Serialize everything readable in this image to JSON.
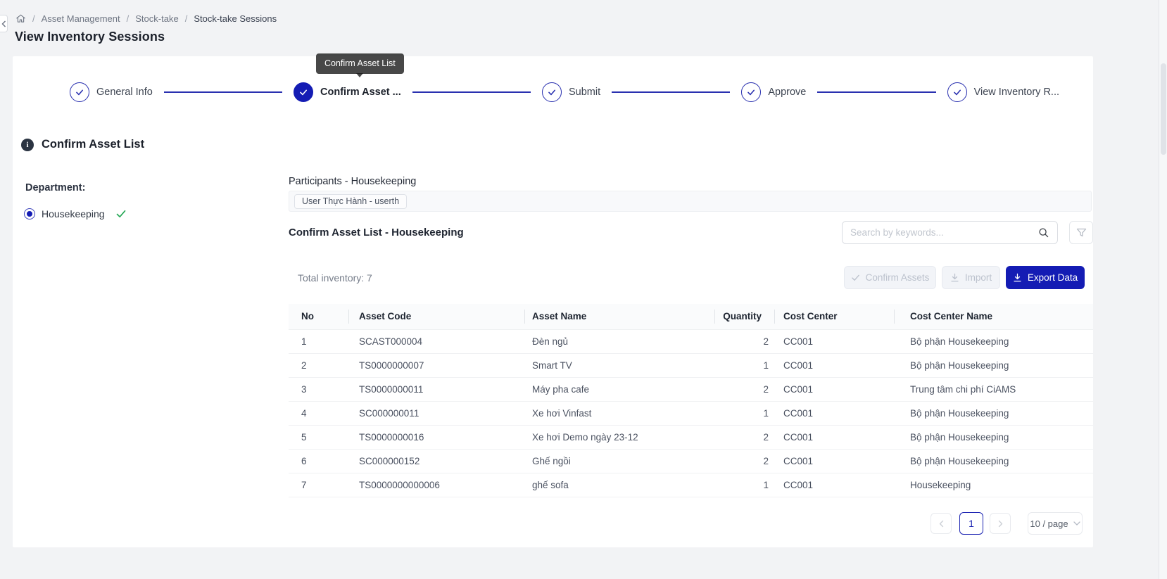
{
  "page": {
    "title": "View Inventory Sessions"
  },
  "breadcrumb": {
    "separator": "/",
    "items": [
      "Asset Management",
      "Stock-take",
      "Stock-take Sessions"
    ]
  },
  "tooltip": {
    "text": "Confirm Asset List"
  },
  "stepper": {
    "steps": [
      {
        "label": "General Info",
        "state": "finished"
      },
      {
        "label": "Confirm Asset ...",
        "state": "current"
      },
      {
        "label": "Submit",
        "state": "finished"
      },
      {
        "label": "Approve",
        "state": "finished"
      },
      {
        "label": "View Inventory R...",
        "state": "finished"
      }
    ]
  },
  "section": {
    "title": "Confirm Asset List"
  },
  "department": {
    "label": "Department:",
    "option": {
      "label": "Housekeeping",
      "selected": true,
      "confirmed": true
    }
  },
  "participants": {
    "title": "Participants - Housekeeping",
    "tag": "User Thực Hành - userth"
  },
  "asset_list": {
    "title": "Confirm Asset List - Housekeeping",
    "search_placeholder": "Search by keywords...",
    "total_label": "Total inventory: 7",
    "buttons": {
      "confirm": "Confirm Assets",
      "import": "Import",
      "export": "Export Data"
    },
    "table": {
      "columns": [
        "No",
        "Asset Code",
        "Asset Name",
        "Quantity",
        "Cost Center",
        "Cost Center Name"
      ],
      "rows": [
        [
          "1",
          "SCAST000004",
          "Đèn ngủ",
          "2",
          "CC001",
          "Bộ phận Housekeeping"
        ],
        [
          "2",
          "TS0000000007",
          "Smart TV",
          "1",
          "CC001",
          "Bộ phận Housekeeping"
        ],
        [
          "3",
          "TS0000000011",
          "Máy pha cafe",
          "2",
          "CC001",
          "Trung tâm chi phí CiAMS"
        ],
        [
          "4",
          "SC000000011",
          "Xe hơi Vinfast",
          "1",
          "CC001",
          "Bộ phận Housekeeping"
        ],
        [
          "5",
          "TS0000000016",
          "Xe hơi Demo ngày 23-12",
          "2",
          "CC001",
          "Bộ phận Housekeeping"
        ],
        [
          "6",
          "SC000000152",
          "Ghế ngồi",
          "2",
          "CC001",
          "Bộ phận Housekeeping"
        ],
        [
          "7",
          "TS0000000000006",
          "ghế sofa",
          "1",
          "CC001",
          "Housekeeping"
        ]
      ]
    }
  },
  "pagination": {
    "current": "1",
    "page_size": "10 / page"
  },
  "icons": {
    "home": "house outline",
    "search": "magnifier",
    "filter": "funnel outline",
    "confirm": "checkmark",
    "import": "download-to-line arrow",
    "export": "download-to-line arrow",
    "step_done": "checkmark in circle",
    "info": "i in filled circle",
    "radio_confirmed": "green checkmark"
  },
  "colors": {
    "primary": "#141cb4",
    "step_line": "#2a31b0",
    "success_green": "#27a857",
    "tooltip_bg": "#404040",
    "page_bg": "#f2f3f5",
    "table_header_bg": "#fafbfc"
  }
}
